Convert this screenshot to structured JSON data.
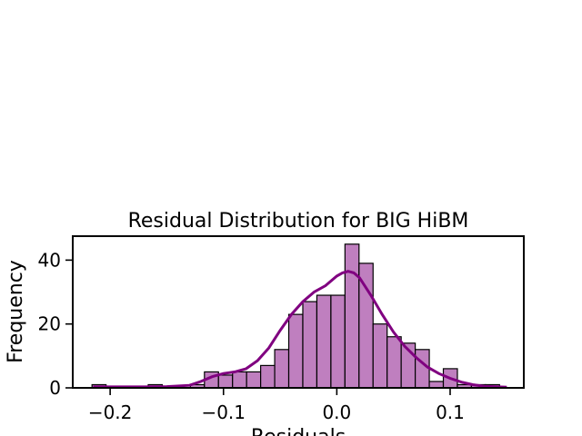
{
  "chart_data": {
    "type": "bar",
    "title": "Residual Distribution for BIG HiBM",
    "xlabel": "Residuals",
    "ylabel": "Frequency",
    "xlim": [
      -0.233,
      0.165
    ],
    "ylim": [
      0,
      47.5
    ],
    "x_ticks": [
      -0.2,
      -0.1,
      0.0,
      0.1
    ],
    "x_tick_labels": [
      "−0.2",
      "−0.1",
      "0.0",
      "0.1"
    ],
    "y_ticks": [
      0,
      20,
      40
    ],
    "y_tick_labels": [
      "0",
      "20",
      "40"
    ],
    "bin_edges": [
      -0.216,
      -0.2036,
      -0.1912,
      -0.1788,
      -0.1664,
      -0.154,
      -0.1416,
      -0.1292,
      -0.1168,
      -0.1044,
      -0.092,
      -0.0796,
      -0.0672,
      -0.0548,
      -0.0424,
      -0.03,
      -0.0176,
      -0.0052,
      0.0072,
      0.0196,
      0.032,
      0.0444,
      0.0568,
      0.0692,
      0.0816,
      0.094,
      0.1064,
      0.1188,
      0.1312,
      0.1436
    ],
    "counts": [
      1,
      0,
      0,
      0,
      1,
      0,
      0,
      1,
      5,
      4,
      5,
      5,
      7,
      12,
      23,
      27,
      29,
      29,
      45,
      39,
      20,
      16,
      14,
      12,
      2,
      6,
      1,
      1,
      1
    ],
    "kde": {
      "x": [
        -0.215,
        -0.19,
        -0.17,
        -0.15,
        -0.13,
        -0.12,
        -0.11,
        -0.1,
        -0.09,
        -0.08,
        -0.07,
        -0.06,
        -0.05,
        -0.04,
        -0.03,
        -0.02,
        -0.01,
        0.0,
        0.005,
        0.01,
        0.015,
        0.02,
        0.03,
        0.04,
        0.05,
        0.06,
        0.07,
        0.08,
        0.09,
        0.1,
        0.11,
        0.12,
        0.13,
        0.15
      ],
      "y": [
        0.3,
        0.3,
        0.3,
        0.4,
        0.8,
        2.0,
        3.5,
        4.5,
        5.0,
        6.0,
        8.5,
        12.5,
        18.0,
        23.0,
        27.0,
        30.0,
        32.0,
        35.0,
        36.0,
        36.5,
        36.0,
        34.5,
        29.0,
        23.0,
        17.5,
        13.0,
        9.5,
        6.5,
        4.5,
        3.0,
        1.8,
        1.0,
        0.5,
        0.2
      ]
    },
    "bar_fill": "#bf7fbf",
    "bar_edge": "#000000",
    "kde_color": "#800080",
    "grid": false,
    "legend": "none"
  }
}
